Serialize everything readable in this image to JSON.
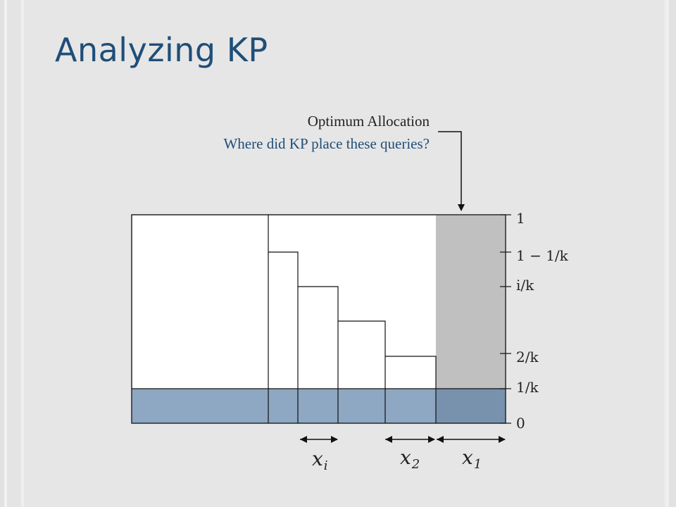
{
  "slide": {
    "title": "Analyzing KP",
    "callout_line1": "Optimum Allocation",
    "callout_line2": "Where did KP place these queries?"
  },
  "colors": {
    "background": "#e6e6e6",
    "title": "#1f4e79",
    "question_text": "#1f4e79",
    "blue_band": "#8ea7c2",
    "blue_band_dark": "#7891ad",
    "gray_column": "#c0c0c0"
  },
  "axis": {
    "ticks": [
      "1",
      "1 − 1/k",
      "i/k",
      "2/k",
      "1/k",
      "0"
    ]
  },
  "widths": {
    "labels": [
      {
        "base": "x",
        "sub": "i"
      },
      {
        "base": "x",
        "sub": "2"
      },
      {
        "base": "x",
        "sub": "1"
      }
    ]
  }
}
